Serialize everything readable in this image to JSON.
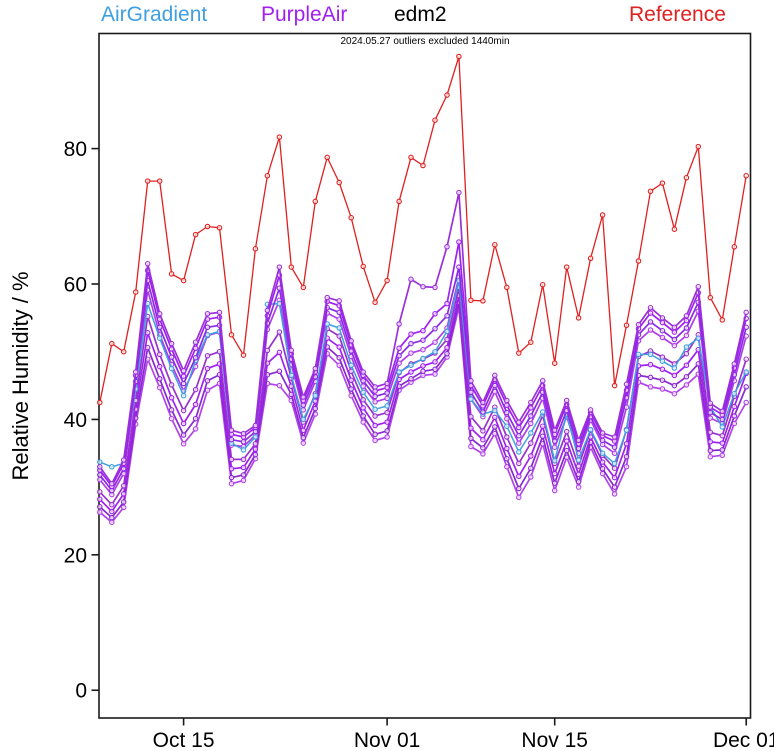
{
  "legend": {
    "items": [
      {
        "label": "AirGradient",
        "color": "#3F9FE0"
      },
      {
        "label": "PurpleAir",
        "color": "#A020F0"
      },
      {
        "label": "edm2",
        "color": "#000000"
      },
      {
        "label": "Reference",
        "color": "#E02020"
      }
    ]
  },
  "annotation": "2024.05.27 outliers excluded 1440min",
  "chart_data": {
    "type": "line",
    "title": "",
    "xlabel": "",
    "ylabel": "Relative Humidity / %",
    "ylim": [
      -4.1,
      97.0
    ],
    "yticks": [
      0,
      20,
      40,
      60,
      80
    ],
    "xticks": [
      {
        "index": 7,
        "label": "Oct 15"
      },
      {
        "index": 24,
        "label": "Nov 01"
      },
      {
        "index": 38,
        "label": "Nov 15"
      },
      {
        "index": 54,
        "label": "Dec 01"
      }
    ],
    "grid": false,
    "legend_position": "top",
    "x_dates": [
      "Oct 08",
      "Oct 09",
      "Oct 10",
      "Oct 11",
      "Oct 12",
      "Oct 13",
      "Oct 14",
      "Oct 15",
      "Oct 16",
      "Oct 17",
      "Oct 18",
      "Oct 19",
      "Oct 20",
      "Oct 21",
      "Oct 22",
      "Oct 23",
      "Oct 24",
      "Oct 25",
      "Oct 26",
      "Oct 27",
      "Oct 28",
      "Oct 29",
      "Oct 30",
      "Oct 31",
      "Nov 01",
      "Nov 02",
      "Nov 03",
      "Nov 04",
      "Nov 05",
      "Nov 06",
      "Nov 07",
      "Nov 08",
      "Nov 09",
      "Nov 10",
      "Nov 11",
      "Nov 12",
      "Nov 13",
      "Nov 14",
      "Nov 15",
      "Nov 16",
      "Nov 17",
      "Nov 18",
      "Nov 19",
      "Nov 20",
      "Nov 21",
      "Nov 22",
      "Nov 23",
      "Nov 24",
      "Nov 25",
      "Nov 26",
      "Nov 27",
      "Nov 28",
      "Nov 29",
      "Nov 30",
      "Dec 01"
    ],
    "series": [
      {
        "id": "reference",
        "name": "Reference",
        "group": "Reference",
        "color": "#E02020",
        "values": [
          42.5,
          51.2,
          50.0,
          58.8,
          75.2,
          75.2,
          61.5,
          60.5,
          67.3,
          68.5,
          68.3,
          52.5,
          49.5,
          65.2,
          76.0,
          81.7,
          62.5,
          59.5,
          72.2,
          78.7,
          75.0,
          69.8,
          62.6,
          57.3,
          60.5,
          72.2,
          78.7,
          77.5,
          84.2,
          87.9,
          93.6,
          57.6,
          57.5,
          65.8,
          59.5,
          49.8,
          51.4,
          59.9,
          48.3,
          62.5,
          55.0,
          63.8,
          70.2,
          45.0,
          53.9,
          63.4,
          73.7,
          74.9,
          68.1,
          75.7,
          80.3,
          58.0,
          54.7,
          65.5,
          76.0
        ]
      },
      {
        "id": "airgradient",
        "name": "AirGradient",
        "group": "AirGradient",
        "color": "#3F9FE0",
        "values": [
          33.7,
          33.0,
          33.5,
          44.5,
          57.1,
          52.0,
          47.5,
          43.5,
          48.7,
          52.5,
          53.0,
          36.5,
          35.5,
          37.4,
          57.0,
          57.1,
          46.5,
          40.0,
          43.5,
          54.1,
          53.5,
          48.0,
          44.0,
          41.5,
          42.0,
          47.0,
          48.0,
          49.0,
          50.0,
          53.0,
          60.5,
          43.0,
          40.8,
          41.3,
          39.0,
          35.2,
          38.0,
          41.1,
          33.9,
          40.8,
          34.0,
          38.5,
          35.0,
          33.5,
          38.4,
          49.6,
          49.6,
          48.6,
          47.6,
          50.7,
          52.0,
          41.9,
          38.9,
          43.8,
          47.0
        ]
      },
      {
        "id": "edm2",
        "name": "edm2",
        "group": "edm2",
        "color": "#000000",
        "values": []
      },
      {
        "id": "pa1",
        "name": "PurpleAir-1",
        "group": "PurpleAir",
        "color": "#9B30D9",
        "values": [
          33.0,
          30.5,
          34.0,
          47.0,
          63.0,
          55.6,
          51.2,
          47.2,
          51.4,
          55.6,
          55.8,
          38.4,
          37.9,
          39.1,
          56.1,
          62.5,
          50.2,
          43.3,
          47.5,
          58.0,
          57.5,
          51.6,
          47.0,
          44.8,
          45.3,
          54.1,
          60.7,
          59.6,
          59.5,
          65.5,
          73.5,
          45.7,
          42.5,
          46.5,
          42.8,
          39.6,
          42.5,
          45.7,
          38.4,
          42.8,
          36.9,
          41.4,
          38.0,
          37.4,
          45.2,
          54.0,
          56.5,
          55.0,
          53.6,
          55.3,
          59.6,
          42.4,
          41.2,
          48.2,
          55.8
        ]
      },
      {
        "id": "pa2",
        "name": "PurpleAir-2",
        "group": "PurpleAir",
        "color": "#A020F0",
        "values": [
          32.5,
          30.1,
          33.5,
          46.5,
          62.0,
          54.8,
          50.4,
          46.4,
          50.5,
          54.8,
          55.1,
          37.8,
          37.4,
          38.8,
          55.3,
          61.3,
          49.7,
          42.8,
          47.0,
          57.4,
          56.8,
          51.0,
          46.5,
          44.2,
          44.7,
          50.5,
          52.6,
          53.1,
          55.6,
          57.1,
          66.2,
          45.0,
          42.0,
          45.9,
          42.1,
          38.8,
          41.7,
          45.0,
          37.8,
          42.2,
          36.4,
          41.0,
          37.6,
          36.8,
          44.3,
          53.4,
          55.7,
          54.3,
          52.9,
          54.6,
          58.7,
          41.8,
          40.7,
          47.6,
          54.9
        ]
      },
      {
        "id": "pa3",
        "name": "PurpleAir-3",
        "group": "PurpleAir",
        "color": "#8A2BE2",
        "values": [
          31.8,
          29.5,
          32.7,
          45.6,
          60.5,
          53.6,
          49.2,
          45.3,
          49.1,
          53.6,
          53.9,
          37.0,
          36.7,
          38.2,
          54.2,
          59.4,
          48.9,
          42.1,
          46.3,
          56.5,
          55.8,
          50.1,
          45.7,
          43.4,
          43.9,
          49.4,
          51.2,
          51.7,
          53.4,
          55.3,
          62.5,
          44.0,
          41.1,
          45.0,
          41.0,
          37.6,
          40.5,
          44.0,
          36.8,
          41.3,
          35.7,
          40.4,
          36.9,
          35.9,
          43.2,
          52.5,
          54.4,
          53.1,
          51.8,
          53.5,
          57.3,
          41.0,
          40.0,
          46.6,
          53.6
        ]
      },
      {
        "id": "pa4",
        "name": "PurpleAir-4",
        "group": "PurpleAir",
        "color": "#AE3FE8",
        "values": [
          31.1,
          28.9,
          32.0,
          44.8,
          59.1,
          52.5,
          48.1,
          44.2,
          47.8,
          52.4,
          52.9,
          36.2,
          36.0,
          37.7,
          53.3,
          57.6,
          48.1,
          41.4,
          45.6,
          55.7,
          54.8,
          49.3,
          44.9,
          42.6,
          43.1,
          48.3,
          49.8,
          50.3,
          51.4,
          53.5,
          61.0,
          43.0,
          40.4,
          44.1,
          40.1,
          36.5,
          39.4,
          43.1,
          35.9,
          40.4,
          35.0,
          39.9,
          36.3,
          35.0,
          41.8,
          51.6,
          53.2,
          52.1,
          50.9,
          52.4,
          56.0,
          40.2,
          39.4,
          45.7,
          52.3
        ]
      },
      {
        "id": "pa5",
        "name": "PurpleAir-5",
        "group": "PurpleAir",
        "color": "#9932CC",
        "values": [
          29.3,
          27.4,
          30.2,
          42.8,
          55.2,
          49.6,
          45.1,
          41.3,
          44.4,
          49.4,
          50.0,
          34.1,
          34.1,
          36.4,
          50.2,
          52.9,
          46.1,
          39.6,
          43.8,
          53.4,
          52.3,
          47.1,
          42.9,
          40.5,
          41.0,
          46.9,
          48.2,
          48.9,
          49.8,
          51.8,
          59.5,
          40.4,
          38.3,
          41.8,
          37.4,
          33.5,
          36.5,
          40.6,
          33.5,
          38.2,
          33.1,
          38.4,
          34.7,
          32.8,
          38.5,
          49.3,
          50.1,
          49.2,
          48.2,
          49.7,
          52.5,
          38.1,
          37.6,
          43.4,
          48.9
        ]
      },
      {
        "id": "pa6",
        "name": "PurpleAir-6",
        "group": "PurpleAir",
        "color": "#A020F0",
        "values": [
          28.2,
          26.4,
          29.0,
          41.5,
          52.8,
          47.8,
          43.2,
          39.4,
          42.2,
          47.5,
          48.2,
          32.7,
          32.9,
          35.6,
          48.3,
          49.9,
          44.9,
          38.4,
          42.7,
          52.0,
          50.7,
          45.8,
          41.7,
          39.1,
          39.6,
          45.9,
          47.0,
          47.9,
          48.5,
          50.6,
          58.3,
          38.7,
          37.0,
          40.3,
          35.7,
          31.6,
          34.6,
          39.0,
          32.0,
          36.8,
          31.9,
          37.4,
          33.7,
          31.4,
          36.4,
          47.9,
          48.1,
          47.4,
          46.5,
          48.0,
          50.3,
          36.7,
          36.5,
          41.9,
          46.8
        ]
      },
      {
        "id": "pa7",
        "name": "PurpleAir-7",
        "group": "PurpleAir",
        "color": "#8929CE",
        "values": [
          27.1,
          25.5,
          27.8,
          40.2,
          50.6,
          46.0,
          41.4,
          37.7,
          40.1,
          45.7,
          46.6,
          31.4,
          31.8,
          34.8,
          46.6,
          47.1,
          43.7,
          37.3,
          41.6,
          50.7,
          49.1,
          44.5,
          40.5,
          37.8,
          38.3,
          44.9,
          46.0,
          47.1,
          47.4,
          49.7,
          57.3,
          37.2,
          35.8,
          38.9,
          34.2,
          29.8,
          32.8,
          37.5,
          30.6,
          35.4,
          30.8,
          36.6,
          32.7,
          30.0,
          34.5,
          46.5,
          46.2,
          45.8,
          45.0,
          46.3,
          48.2,
          35.4,
          35.5,
          40.5,
          44.8
        ]
      },
      {
        "id": "pa8",
        "name": "PurpleAir-8",
        "group": "PurpleAir",
        "color": "#B043EA",
        "values": [
          26.3,
          24.8,
          27.0,
          39.3,
          48.9,
          44.7,
          40.1,
          36.4,
          38.6,
          44.3,
          45.3,
          30.5,
          31.0,
          34.2,
          45.3,
          45.0,
          42.8,
          36.5,
          40.8,
          49.7,
          48.0,
          43.5,
          39.6,
          36.9,
          37.4,
          44.3,
          45.5,
          46.5,
          46.7,
          49.2,
          56.6,
          36.0,
          34.9,
          37.9,
          33.0,
          28.5,
          31.5,
          36.4,
          29.5,
          34.4,
          30.0,
          35.9,
          32.0,
          29.0,
          33.0,
          45.5,
          44.8,
          44.5,
          43.8,
          45.1,
          46.7,
          34.5,
          34.7,
          39.4,
          42.5
        ]
      }
    ]
  }
}
